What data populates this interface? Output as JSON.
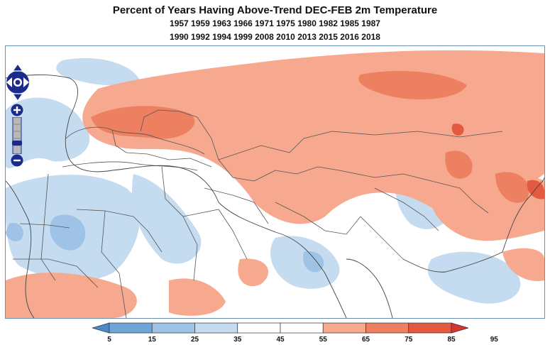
{
  "title": "Percent of Years Having Above-Trend DEC-FEB 2m Temperature",
  "years_line1": "1957 1959 1963 1966 1971 1975 1980 1982 1985 1987",
  "years_line2": "1990 1992 1994 1999 2008 2010 2013 2015 2016 2018",
  "map_controls": [
    "pan-control",
    "zoom-in",
    "zoom-slider",
    "zoom-out"
  ],
  "colors": {
    "c5": "#4a8bc8",
    "c15": "#6ea6d7",
    "c25": "#9ec3e6",
    "c35": "#c5dcf0",
    "c45": "#ffffff",
    "c55": "#ffffff",
    "c65": "#f6a98e",
    "c75": "#ee8062",
    "c85": "#e35a41",
    "c95": "#d7362c",
    "land_border": "#555555",
    "frame": "#6a8fb2",
    "control": "#1a2b8c"
  },
  "legend": {
    "ticks": [
      "5",
      "15",
      "25",
      "35",
      "45",
      "55",
      "65",
      "75",
      "85",
      "95"
    ]
  }
}
